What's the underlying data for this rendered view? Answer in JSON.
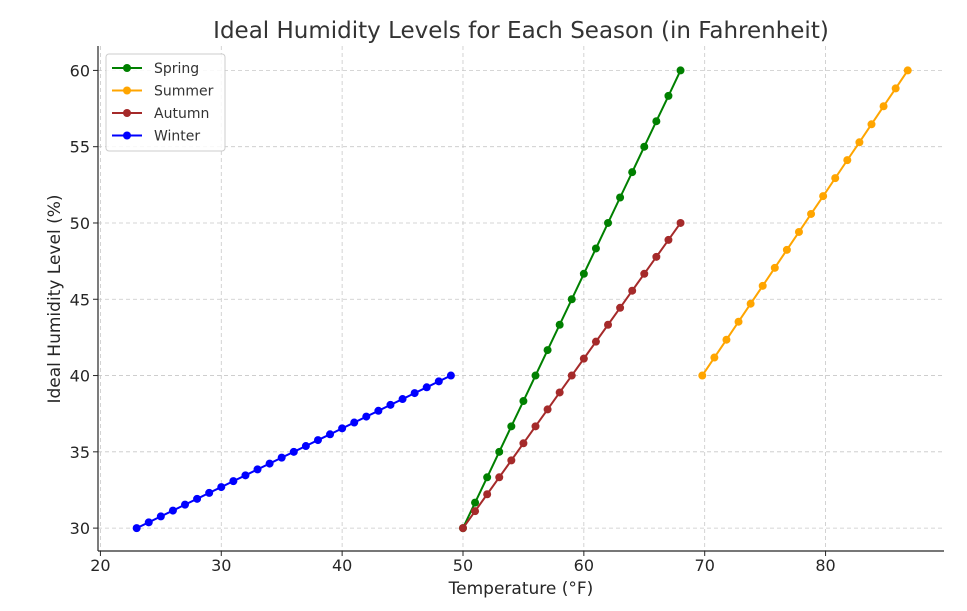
{
  "chart_data": {
    "type": "line",
    "title": "Ideal Humidity Levels for Each Season (in Fahrenheit)",
    "xlabel": "Temperature (°F)",
    "ylabel": "Ideal Humidity Level (%)",
    "xlim": [
      19.8,
      89.8
    ],
    "ylim": [
      28.5,
      61.6
    ],
    "xticks": [
      20,
      30,
      40,
      50,
      60,
      70,
      80
    ],
    "yticks": [
      30,
      35,
      40,
      45,
      50,
      55,
      60
    ],
    "grid": true,
    "legend_position": "top-left",
    "series": [
      {
        "name": "Spring",
        "color": "#008000",
        "x": [
          50,
          51,
          52,
          53,
          54,
          55,
          56,
          57,
          58,
          59,
          60,
          61,
          62,
          63,
          64,
          65,
          66,
          67,
          68
        ],
        "y": [
          30.0,
          31.67,
          33.33,
          35.0,
          36.67,
          38.33,
          40.0,
          41.67,
          43.33,
          45.0,
          46.67,
          48.33,
          50.0,
          51.67,
          53.33,
          55.0,
          56.67,
          58.33,
          60.0
        ]
      },
      {
        "name": "Summer",
        "color": "#FFA500",
        "x": [
          69.8,
          70.8,
          71.8,
          72.8,
          73.8,
          74.8,
          75.8,
          76.8,
          77.8,
          78.8,
          79.8,
          80.8,
          81.8,
          82.8,
          83.8,
          84.8,
          85.8,
          86.8
        ],
        "y": [
          40.0,
          41.18,
          42.35,
          43.53,
          44.71,
          45.88,
          47.06,
          48.24,
          49.41,
          50.59,
          51.76,
          52.94,
          54.12,
          55.29,
          56.47,
          57.65,
          58.82,
          60.0
        ]
      },
      {
        "name": "Autumn",
        "color": "#A52A2A",
        "x": [
          50,
          51,
          52,
          53,
          54,
          55,
          56,
          57,
          58,
          59,
          60,
          61,
          62,
          63,
          64,
          65,
          66,
          67,
          68
        ],
        "y": [
          30.0,
          31.11,
          32.22,
          33.33,
          34.44,
          35.56,
          36.67,
          37.78,
          38.89,
          40.0,
          41.11,
          42.22,
          43.33,
          44.44,
          45.56,
          46.67,
          47.78,
          48.89,
          50.0
        ]
      },
      {
        "name": "Winter",
        "color": "#0000FF",
        "x": [
          23,
          24,
          25,
          26,
          27,
          28,
          29,
          30,
          31,
          32,
          33,
          34,
          35,
          36,
          37,
          38,
          39,
          40,
          41,
          42,
          43,
          44,
          45,
          46,
          47,
          48,
          49
        ],
        "y": [
          30.0,
          30.38,
          30.77,
          31.15,
          31.54,
          31.92,
          32.31,
          32.69,
          33.08,
          33.46,
          33.85,
          34.23,
          34.62,
          35.0,
          35.38,
          35.77,
          36.15,
          36.54,
          36.92,
          37.31,
          37.69,
          38.08,
          38.46,
          38.85,
          39.23,
          39.62,
          40.0
        ]
      }
    ]
  }
}
